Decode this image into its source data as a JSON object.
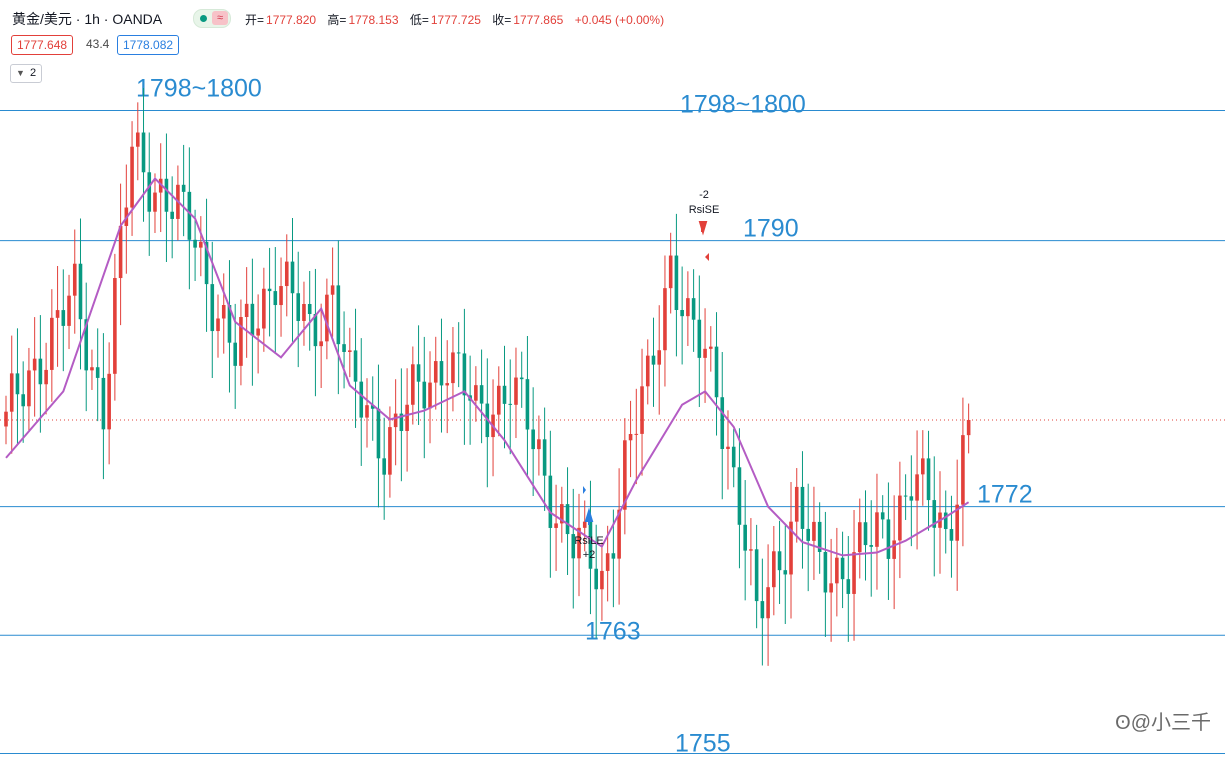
{
  "header": {
    "symbol": "黄金/美元 · 1h · OANDA",
    "status_wave": "≈",
    "open_label": "开=",
    "open_value": "1777.820",
    "high_label": "高=",
    "high_value": "1778.153",
    "low_label": "低=",
    "low_value": "1777.725",
    "close_label": "收=",
    "close_value": "1777.865",
    "change": "+0.045 (+0.00%)",
    "bid": "1777.648",
    "spread": "43.4",
    "ask": "1778.082",
    "collapse_count": "2"
  },
  "watermark": "@小三千",
  "colors": {
    "up": "#e2403a",
    "down": "#089981",
    "ma": "#b45cc4",
    "level": "#2a8bd0",
    "price_line": "#e2403a"
  },
  "chart_data": {
    "type": "candlestick",
    "timeframe": "1h",
    "y_range": [
      1754,
      1801
    ],
    "current_price": 1777.865,
    "levels": [
      {
        "label": "1798~1800",
        "value": 1798.8
      },
      {
        "label": "1798~1800",
        "value": 1798.8
      },
      {
        "label": "1790",
        "value": 1790.0
      },
      {
        "label": "1772",
        "value": 1772.0
      },
      {
        "label": "1763",
        "value": 1763.3
      },
      {
        "label": "1755",
        "value": 1755.3
      }
    ],
    "signals": [
      {
        "text": "-2",
        "type": "sell"
      },
      {
        "text": "RsiSE",
        "type": "sell"
      },
      {
        "text": "RsiLE",
        "type": "buy"
      },
      {
        "text": "+2",
        "type": "buy"
      }
    ],
    "anchors": [
      [
        0,
        1777.5
      ],
      [
        6,
        1782.5
      ],
      [
        12,
        1786
      ],
      [
        17,
        1779
      ],
      [
        22,
        1796
      ],
      [
        27,
        1793.5
      ],
      [
        33,
        1790
      ],
      [
        40,
        1782
      ],
      [
        47,
        1788
      ],
      [
        53,
        1783.5
      ],
      [
        57,
        1787
      ],
      [
        60,
        1780
      ],
      [
        66,
        1776.5
      ],
      [
        72,
        1779.5
      ],
      [
        77,
        1782.5
      ],
      [
        82,
        1778
      ],
      [
        88,
        1780.5
      ],
      [
        94,
        1774
      ],
      [
        99,
        1769.5
      ],
      [
        104,
        1767
      ],
      [
        108,
        1775
      ],
      [
        112,
        1780
      ],
      [
        116,
        1789
      ],
      [
        119,
        1784
      ],
      [
        124,
        1780.5
      ],
      [
        128,
        1772
      ],
      [
        131,
        1764
      ],
      [
        134,
        1768
      ],
      [
        138,
        1772
      ],
      [
        142,
        1767.5
      ],
      [
        148,
        1768.5
      ],
      [
        154,
        1770.5
      ],
      [
        158,
        1774
      ],
      [
        164,
        1770
      ],
      [
        168,
        1778
      ]
    ],
    "ma": [
      [
        0,
        1775.3
      ],
      [
        10,
        1779.8
      ],
      [
        20,
        1791
      ],
      [
        26,
        1794.2
      ],
      [
        33,
        1791.5
      ],
      [
        40,
        1784.5
      ],
      [
        48,
        1782.1
      ],
      [
        55,
        1785.4
      ],
      [
        60,
        1780.2
      ],
      [
        67,
        1777.9
      ],
      [
        73,
        1778.5
      ],
      [
        80,
        1779.8
      ],
      [
        87,
        1776.5
      ],
      [
        95,
        1771.6
      ],
      [
        104,
        1769.3
      ],
      [
        110,
        1773.8
      ],
      [
        118,
        1778.9
      ],
      [
        122,
        1779.8
      ],
      [
        127,
        1777.4
      ],
      [
        133,
        1772
      ],
      [
        139,
        1769.6
      ],
      [
        146,
        1768.7
      ],
      [
        152,
        1768.9
      ],
      [
        157,
        1769.7
      ],
      [
        164,
        1771.3
      ],
      [
        168,
        1772.3
      ]
    ]
  }
}
